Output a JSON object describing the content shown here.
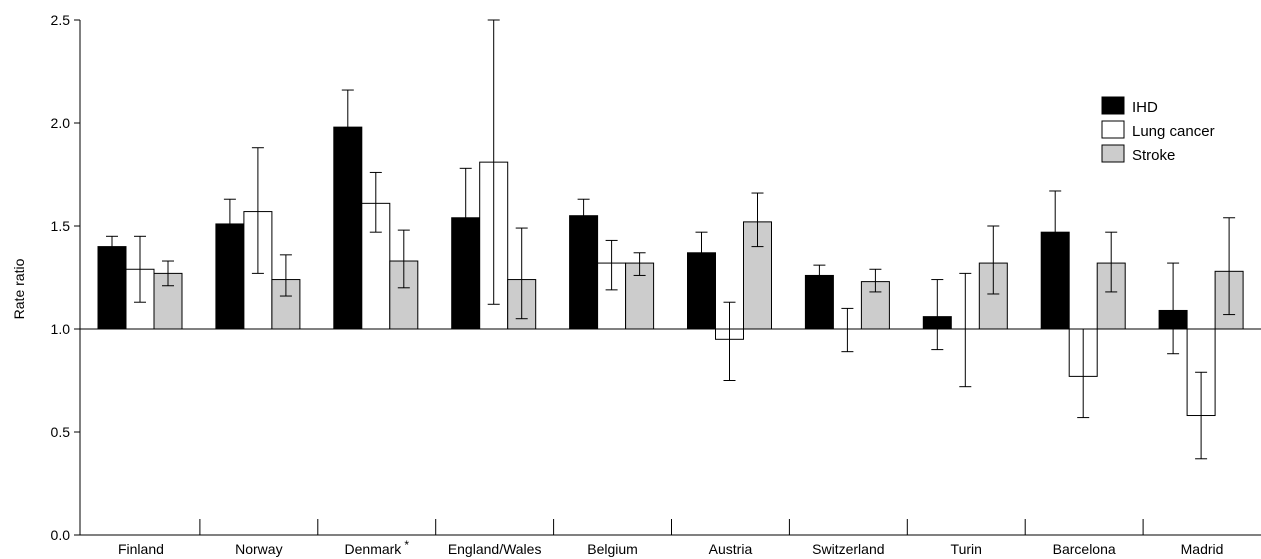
{
  "chart_data": {
    "type": "bar",
    "ylabel": "Rate ratio",
    "ylim": [
      0,
      2.5
    ],
    "yticks": [
      "0.0",
      "0.5",
      "1.0",
      "1.5",
      "2.0",
      "2.5"
    ],
    "baseline": 1.0,
    "categories": [
      "Finland",
      "Norway",
      "Denmark",
      "England/Wales",
      "Belgium",
      "Austria",
      "Switzerland",
      "Turin",
      "Barcelona",
      "Madrid"
    ],
    "category_marks": [
      "",
      "",
      "*",
      "",
      "",
      "",
      "",
      "",
      "",
      ""
    ],
    "legend_position": "top-right",
    "series": [
      {
        "name": "IHD",
        "color": "#000000",
        "values": [
          1.4,
          1.51,
          1.98,
          1.54,
          1.55,
          1.37,
          1.26,
          1.06,
          1.47,
          1.09
        ],
        "ci_low": [
          1.35,
          1.41,
          1.83,
          1.32,
          1.48,
          1.29,
          1.22,
          0.9,
          1.32,
          0.88
        ],
        "ci_high": [
          1.45,
          1.63,
          2.16,
          1.78,
          1.63,
          1.47,
          1.31,
          1.24,
          1.67,
          1.32
        ]
      },
      {
        "name": "Lung cancer",
        "color": "#ffffff",
        "values": [
          1.29,
          1.57,
          1.61,
          1.81,
          1.32,
          0.95,
          1.0,
          1.0,
          0.77,
          0.58
        ],
        "ci_low": [
          1.13,
          1.27,
          1.47,
          1.12,
          1.19,
          0.75,
          0.89,
          0.72,
          0.57,
          0.37
        ],
        "ci_high": [
          1.45,
          1.88,
          1.76,
          2.5,
          1.43,
          1.13,
          1.1,
          1.27,
          1.0,
          0.79
        ]
      },
      {
        "name": "Stroke",
        "color": "#cccccc",
        "values": [
          1.27,
          1.24,
          1.33,
          1.24,
          1.32,
          1.52,
          1.23,
          1.32,
          1.32,
          1.28
        ],
        "ci_low": [
          1.21,
          1.16,
          1.2,
          1.05,
          1.26,
          1.4,
          1.18,
          1.17,
          1.18,
          1.07
        ],
        "ci_high": [
          1.33,
          1.36,
          1.48,
          1.49,
          1.37,
          1.66,
          1.29,
          1.5,
          1.47,
          1.54
        ]
      }
    ]
  }
}
